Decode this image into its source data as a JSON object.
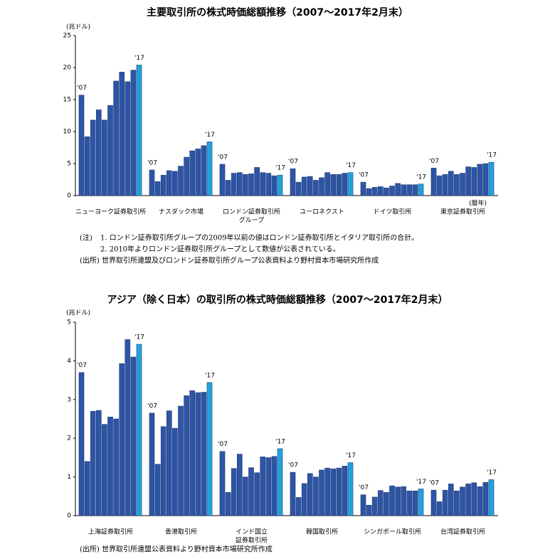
{
  "chart_data": [
    {
      "type": "grouped-bar",
      "title": "主要取引所の株式時価総額推移（2007～2017年2月末）",
      "y_unit": "(兆ドル)",
      "x_unit": "(暦年)",
      "first_label": "'07",
      "last_label": "'17",
      "color": "#2d55a6",
      "last_color": "#22a2dc",
      "ylim": [
        0,
        25
      ],
      "yticks": [
        0,
        5,
        10,
        15,
        20,
        25
      ],
      "groups": [
        {
          "name": [
            "ニューヨーク証券取引所"
          ],
          "values": [
            15.7,
            9.2,
            11.8,
            13.4,
            11.8,
            14.1,
            17.9,
            19.3,
            17.8,
            19.6,
            20.4
          ]
        },
        {
          "name": [
            "ナスダック市場"
          ],
          "values": [
            4.0,
            2.2,
            3.2,
            3.9,
            3.8,
            4.6,
            6.0,
            7.0,
            7.3,
            7.8,
            8.4
          ]
        },
        {
          "name": [
            "ロンドン証券取引所",
            "グループ"
          ],
          "values": [
            4.9,
            2.4,
            3.5,
            3.6,
            3.3,
            3.4,
            4.4,
            3.6,
            3.5,
            3.1,
            3.2
          ]
        },
        {
          "name": [
            "ユーロネクスト"
          ],
          "values": [
            4.2,
            2.1,
            2.9,
            3.0,
            2.4,
            2.8,
            3.6,
            3.3,
            3.3,
            3.5,
            3.6
          ]
        },
        {
          "name": [
            "ドイツ取引所"
          ],
          "values": [
            2.1,
            1.1,
            1.3,
            1.4,
            1.2,
            1.5,
            1.9,
            1.7,
            1.7,
            1.7,
            1.8
          ]
        },
        {
          "name": [
            "東京証券取引所"
          ],
          "values": [
            4.3,
            3.1,
            3.3,
            3.8,
            3.3,
            3.5,
            4.5,
            4.4,
            4.9,
            5.0,
            5.2
          ]
        }
      ],
      "note_label": "(注)",
      "notes": [
        "1. ロンドン証券取引所グループの2009年以前の値はロンドン証券取引所とイタリア取引所の合計。",
        "2. 2010年よりロンドン証券取引所グループとして数値が公表されている。"
      ],
      "source": "(出所) 世界取引所連盟及びロンドン証券取引所グループ公表資料より野村資本市場研究所作成"
    },
    {
      "type": "grouped-bar",
      "title": "アジア（除く日本）の取引所の株式時価総額推移（2007～2017年2月末）",
      "y_unit": "(兆ドル)",
      "first_label": "'07",
      "last_label": "'17",
      "color": "#2d55a6",
      "last_color": "#22a2dc",
      "ylim": [
        0,
        5
      ],
      "yticks": [
        0,
        1,
        2,
        3,
        4,
        5
      ],
      "groups": [
        {
          "name": [
            "上海証券取引所"
          ],
          "values": [
            3.7,
            1.4,
            2.7,
            2.72,
            2.36,
            2.55,
            2.5,
            3.93,
            4.55,
            4.1,
            4.43
          ]
        },
        {
          "name": [
            "香港取引所"
          ],
          "values": [
            2.65,
            1.33,
            2.3,
            2.71,
            2.26,
            2.83,
            3.1,
            3.23,
            3.18,
            3.19,
            3.44
          ]
        },
        {
          "name": [
            "インド国立",
            "証券取引所"
          ],
          "values": [
            1.66,
            0.6,
            1.22,
            1.59,
            1.0,
            1.24,
            1.11,
            1.52,
            1.5,
            1.53,
            1.73
          ]
        },
        {
          "name": [
            "韓国取引所"
          ],
          "values": [
            1.12,
            0.47,
            0.83,
            1.09,
            1.0,
            1.18,
            1.23,
            1.21,
            1.23,
            1.28,
            1.37
          ]
        },
        {
          "name": [
            "シンガポール取引所"
          ],
          "values": [
            0.54,
            0.27,
            0.48,
            0.65,
            0.6,
            0.77,
            0.74,
            0.75,
            0.64,
            0.64,
            0.69
          ]
        },
        {
          "name": [
            "台湾証券取引所"
          ],
          "values": [
            0.66,
            0.36,
            0.66,
            0.82,
            0.64,
            0.74,
            0.82,
            0.85,
            0.75,
            0.86,
            0.93
          ]
        }
      ],
      "source": "(出所) 世界取引所連盟公表資料より野村資本市場研究所作成"
    }
  ]
}
